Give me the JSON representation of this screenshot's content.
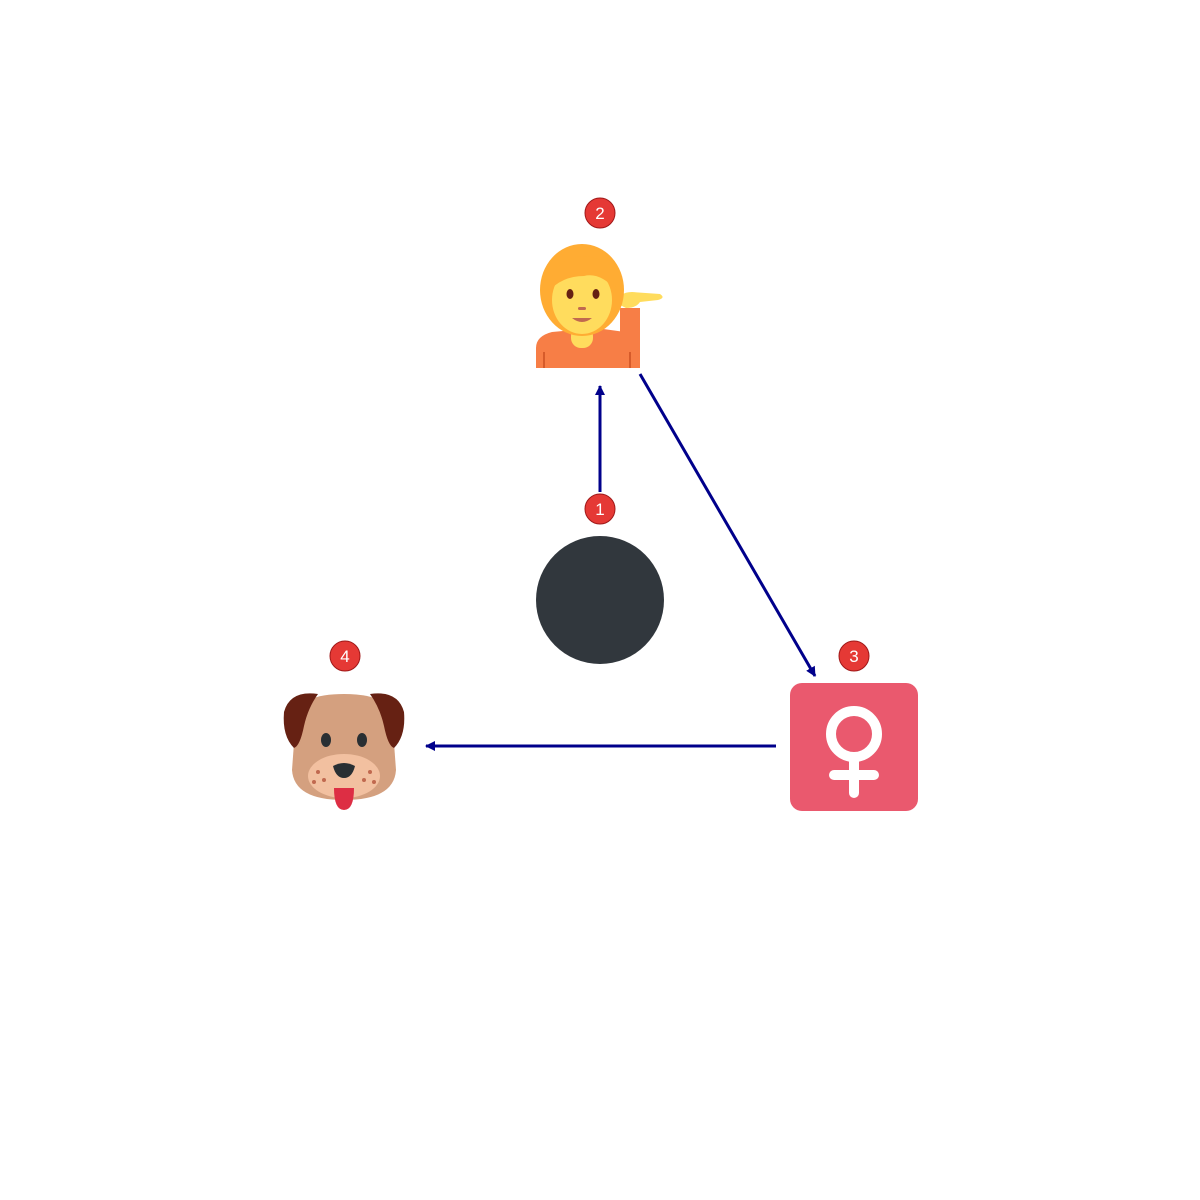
{
  "diagram": {
    "nodes": [
      {
        "id": "n1",
        "badge": "1",
        "icon": "black-circle-icon"
      },
      {
        "id": "n2",
        "badge": "2",
        "icon": "person-tipping-hand-icon"
      },
      {
        "id": "n3",
        "badge": "3",
        "icon": "female-sign-icon"
      },
      {
        "id": "n4",
        "badge": "4",
        "icon": "dog-face-icon"
      }
    ],
    "edges": [
      {
        "from": "n1",
        "to": "n2"
      },
      {
        "from": "n2",
        "to": "n3"
      },
      {
        "from": "n3",
        "to": "n4"
      }
    ]
  },
  "colors": {
    "arrow": "#00008b",
    "badge": "#e53935",
    "circle": "#31373d",
    "female_tile": "#ea596e",
    "person_shirt": "#f77e46",
    "person_skin": "#ffdc5d",
    "person_hair": "#ffac33",
    "dog_face": "#d4a07f",
    "dog_ears": "#662113"
  }
}
